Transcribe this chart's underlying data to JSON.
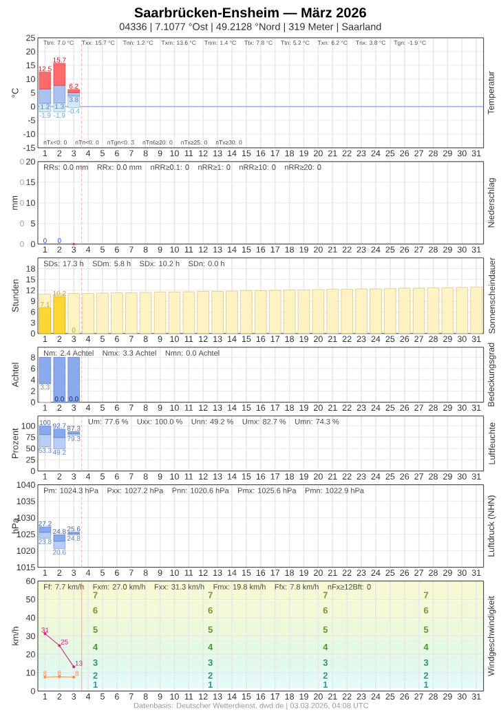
{
  "chart_data": [
    {
      "type": "bar",
      "title": "Saarbrücken-Ensheim — März 2026",
      "subtitle": "04336 | 7.1077 °Ost | 49.2128 °Nord | 319 Meter | Saarland",
      "ylabel": "°C",
      "y2label": "Temperatur",
      "xlim": [
        0.5,
        31.5
      ],
      "xticks": [
        1,
        2,
        3,
        4,
        5,
        6,
        7,
        8,
        9,
        10,
        11,
        12,
        13,
        14,
        15,
        16,
        17,
        18,
        19,
        20,
        21,
        22,
        23,
        24,
        25,
        26,
        27,
        28,
        29,
        30,
        31
      ],
      "ylim": [
        -15,
        25
      ],
      "yticks": [
        -15,
        -10,
        -5,
        0,
        5,
        10,
        15,
        20,
        25
      ],
      "grid": true,
      "series": [
        {
          "x": [
            1,
            2,
            3
          ],
          "base": [
            -1.9,
            -1.9,
            -0.4
          ],
          "values": [
            3.1,
            3.2,
            4.2
          ],
          "color": "#D4EAF8"
        },
        {
          "x": [
            1,
            2,
            3
          ],
          "base": [
            1.2,
            1.3,
            3.8
          ],
          "values": [
            5.2,
            6.4,
            1.3
          ],
          "color": "#A9C2F2"
        },
        {
          "x": [
            1,
            2,
            3
          ],
          "base": [
            6.4,
            7.7,
            5.1
          ],
          "values": [
            6.1,
            8.0,
            1.1
          ],
          "color": "#FF6B6B"
        }
      ],
      "ref_lines": [
        {
          "axis": "y",
          "value": 0,
          "color": "#5B8AE6",
          "line_style": "solid"
        },
        {
          "axis": "x",
          "value": 3.55,
          "color": "#F4A6A6",
          "line_style": "dashed"
        }
      ],
      "annotations": [
        "Ttm: 7.0 °C",
        "Txx: 15.7 °C",
        "Tnn: 1.2 °C",
        "Txm: 13.6 °C",
        "Tnm: 1.4 °C",
        "Ttx: 7.8 °C",
        "Ttn: 5.2 °C",
        "Txn: 6.2 °C",
        "Tnx: 3.8 °C",
        "Tgn: -1.9 °C",
        "nTx<0: 0",
        "nTn<0: 0",
        "nTgn<0: 3",
        "nTn6≥20: 0",
        "nTx≥25: 0",
        "nTx≥30: 0",
        {
          "text": "12.5",
          "x": 1,
          "y": 12.5
        },
        {
          "text": "15.7",
          "x": 2,
          "y": 15.7
        },
        {
          "text": "6.2",
          "x": 3,
          "y": 6.2
        },
        {
          "text": "1.2",
          "x": 1,
          "y": 1.2
        },
        {
          "text": "1.3",
          "x": 2,
          "y": 1.3
        },
        {
          "text": "3.8",
          "x": 3,
          "y": 3.8
        },
        {
          "text": "-1.9",
          "x": 1,
          "y": -1.9
        },
        {
          "text": "-1.9",
          "x": 2,
          "y": -1.9
        },
        {
          "text": "-0.4",
          "x": 3,
          "y": -0.4
        }
      ]
    },
    {
      "type": "bar",
      "ylabel": "mm",
      "y2label": "Niederschlag",
      "xlim": [
        0.5,
        31.5
      ],
      "xticks": [
        1,
        2,
        3,
        4,
        5,
        6,
        7,
        8,
        9,
        10,
        11,
        12,
        13,
        14,
        15,
        16,
        17,
        18,
        19,
        20,
        21,
        22,
        23,
        24,
        25,
        26,
        27,
        28,
        29,
        30,
        31
      ],
      "ylim": [
        0,
        20
      ],
      "yticks": [
        0,
        5,
        10,
        15,
        20
      ],
      "grid": true,
      "series": [
        {
          "x": [
            1,
            2
          ],
          "values": [
            0,
            0
          ],
          "color": "#7B9CF0",
          "value_labels": [
            "0",
            "0"
          ]
        },
        {
          "type": "scatter",
          "x": [
            3
          ],
          "values": [
            0
          ],
          "color": "#FF2020",
          "marker": "circle"
        }
      ],
      "ref_lines": [
        {
          "axis": "x",
          "value": 3.55,
          "color": "#F4A6A6",
          "line_style": "dashed"
        }
      ],
      "annotations": [
        "RRs: 0.0 mm",
        "RRx: 0.0 mm",
        "nRR≥0.1: 0",
        "nRR≥1: 0",
        "nRR≥10: 0",
        "nRR≥20: 0",
        "0",
        "0",
        "0",
        "0",
        "0"
      ]
    },
    {
      "type": "bar",
      "ylabel": "Stunden",
      "y2label": "Sonnenscheindauer",
      "xlim": [
        0.5,
        31.5
      ],
      "xticks": [
        1,
        2,
        3,
        4,
        5,
        6,
        7,
        8,
        9,
        10,
        11,
        12,
        13,
        14,
        15,
        16,
        17,
        18,
        19,
        20,
        21,
        22,
        23,
        24,
        25,
        26,
        27,
        28,
        29,
        30,
        31
      ],
      "ylim": [
        0,
        21
      ],
      "yticks": [
        0,
        3,
        6,
        9,
        12,
        15,
        18
      ],
      "grid": true,
      "series": [
        {
          "x": [
            1,
            2,
            3,
            4,
            5,
            6,
            7,
            8,
            9,
            10,
            11,
            12,
            13,
            14,
            15,
            16,
            17,
            18,
            19,
            20,
            21,
            22,
            23,
            24,
            25,
            26,
            27,
            28,
            29,
            30,
            31
          ],
          "values": [
            10.9,
            11.0,
            11.1,
            11.1,
            11.2,
            11.3,
            11.3,
            11.4,
            11.5,
            11.5,
            11.6,
            11.7,
            11.7,
            11.8,
            11.9,
            11.9,
            12.0,
            12.1,
            12.1,
            12.2,
            12.3,
            12.3,
            12.4,
            12.4,
            12.5,
            12.6,
            12.6,
            12.7,
            12.7,
            12.8,
            12.9
          ],
          "color": "#FFF3C4"
        },
        {
          "x": [
            1,
            2,
            3
          ],
          "values": [
            7.1,
            10.2,
            0
          ],
          "color": "#FFD633",
          "value_labels": [
            "7.1",
            "10.2",
            "0"
          ]
        }
      ],
      "ref_lines": [
        {
          "axis": "x",
          "value": 3.55,
          "color": "#F4A6A6",
          "line_style": "dashed"
        }
      ],
      "annotations": [
        "SDs: 17.3 h",
        "SDm: 5.8 h",
        "SDx: 10.2 h",
        "SDn: 0.0 h"
      ]
    },
    {
      "type": "bar",
      "ylabel": "Achtel",
      "y2label": "Bedeckungsgrad",
      "xlim": [
        0.5,
        31.5
      ],
      "xticks": [
        1,
        2,
        3,
        4,
        5,
        6,
        7,
        8,
        9,
        10,
        11,
        12,
        13,
        14,
        15,
        16,
        17,
        18,
        19,
        20,
        21,
        22,
        23,
        24,
        25,
        26,
        27,
        28,
        29,
        30,
        31
      ],
      "ylim": [
        0,
        9.8
      ],
      "yticks": [
        0,
        2,
        4,
        6,
        8
      ],
      "grid": true,
      "stacked": true,
      "series": [
        {
          "x": [
            1,
            2,
            3
          ],
          "values": [
            3.3,
            0.0,
            0.0
          ],
          "color": "#FFFFFF",
          "value_labels": [
            "3.3",
            null,
            null
          ]
        },
        {
          "x": [
            1,
            2,
            3
          ],
          "values": [
            4.7,
            8,
            8
          ],
          "color": "#8AAAF0"
        }
      ],
      "ref_lines": [
        {
          "axis": "x",
          "value": 3.55,
          "color": "#F4A6A6",
          "line_style": "dashed"
        }
      ],
      "annotations": [
        "Nm: 2.4 Achtel",
        "Nmx: 3.3 Achtel",
        "Nmn: 0.0 Achtel",
        {
          "text": "0.0",
          "x": 2,
          "y": 0
        },
        {
          "text": "0.0",
          "x": 3,
          "y": 0
        }
      ]
    },
    {
      "type": "bar",
      "ylabel": "Prozent",
      "y2label": "Luftfeuchte",
      "xlim": [
        0.5,
        31.5
      ],
      "xticks": [
        1,
        2,
        3,
        4,
        5,
        6,
        7,
        8,
        9,
        10,
        11,
        12,
        13,
        14,
        15,
        16,
        17,
        18,
        19,
        20,
        21,
        22,
        23,
        24,
        25,
        26,
        27,
        28,
        29,
        30,
        31
      ],
      "ylim": [
        0,
        122
      ],
      "yticks": [
        0,
        25,
        50,
        75,
        100
      ],
      "grid": true,
      "series": [
        {
          "x": [
            1,
            2,
            3
          ],
          "base": [
            53.3,
            49.2,
            79.3
          ],
          "values": [
            27.6,
            25.1,
            3.4
          ],
          "color": "#B8CDF5"
        },
        {
          "x": [
            1,
            2,
            3
          ],
          "base": [
            80.9,
            74.3,
            82.7
          ],
          "values": [
            19.1,
            18.4,
            4.6
          ],
          "color": "#88A9EF"
        }
      ],
      "ref_lines": [
        {
          "axis": "x",
          "value": 3.55,
          "color": "#F4A6A6",
          "line_style": "dashed"
        }
      ],
      "annotations": [
        "Um: 77.6 %",
        "Uxx: 100.0 %",
        "Unn: 49.2 %",
        "Umx: 82.7 %",
        "Umn: 74.3 %",
        {
          "text": "100",
          "x": 1,
          "y": 100
        },
        {
          "text": "92.7",
          "x": 2,
          "y": 92.7
        },
        {
          "text": "87.3",
          "x": 3,
          "y": 87.3
        },
        {
          "text": "53.3",
          "x": 1,
          "y": 53.3
        },
        {
          "text": "49.2",
          "x": 2,
          "y": 49.2
        },
        {
          "text": "79.3",
          "x": 3,
          "y": 79.3
        }
      ]
    },
    {
      "type": "bar",
      "ylabel": "hPa",
      "y2label": "Luftdruck (NHN)",
      "xlim": [
        0.5,
        31.5
      ],
      "xticks": [
        1,
        2,
        3,
        4,
        5,
        6,
        7,
        8,
        9,
        10,
        11,
        12,
        13,
        14,
        15,
        16,
        17,
        18,
        19,
        20,
        21,
        22,
        23,
        24,
        25,
        26,
        27,
        28,
        29,
        30,
        31
      ],
      "ylim": [
        1015,
        1040
      ],
      "yticks": [
        1015,
        1020,
        1025,
        1030,
        1035,
        1040
      ],
      "grid": true,
      "series": [
        {
          "x": [
            1,
            2,
            3
          ],
          "base": [
            1023.8,
            1020.6,
            1024.8
          ],
          "values": [
            1.8,
            2.3,
            0.4
          ],
          "color": "#B8CDF5"
        },
        {
          "x": [
            1,
            2,
            3
          ],
          "base": [
            1025.6,
            1022.9,
            1025.2
          ],
          "values": [
            1.6,
            1.9,
            0.4
          ],
          "color": "#88A9EF"
        }
      ],
      "ref_lines": [
        {
          "axis": "x",
          "value": 3.55,
          "color": "#F4A6A6",
          "line_style": "dashed"
        }
      ],
      "annotations": [
        "Pm: 1024.3 hPa",
        "Pxx: 1027.2 hPa",
        "Pnn: 1020.6 hPa",
        "Pmx: 1025.6 hPa",
        "Pmn: 1022.9 hPa",
        {
          "text": "27.2",
          "x": 1,
          "y": 1027.2
        },
        {
          "text": "24.8",
          "x": 2,
          "y": 1024.8
        },
        {
          "text": "25.6",
          "x": 3,
          "y": 1025.6
        },
        {
          "text": "23.8",
          "x": 1,
          "y": 1023.8
        },
        {
          "text": "20.6",
          "x": 2,
          "y": 1020.6
        },
        {
          "text": "24.8",
          "x": 3,
          "y": 1024.8
        }
      ]
    },
    {
      "type": "line",
      "ylabel": "km/h",
      "y2label": "Windgeschwindigkeit",
      "xlim": [
        0.5,
        31.5
      ],
      "xticks": [
        1,
        2,
        3,
        4,
        5,
        6,
        7,
        8,
        9,
        10,
        11,
        12,
        13,
        14,
        15,
        16,
        17,
        18,
        19,
        20,
        21,
        22,
        23,
        24,
        25,
        26,
        27,
        28,
        29,
        30,
        31
      ],
      "ylim": [
        0,
        60
      ],
      "yticks": [
        0,
        10,
        20,
        30,
        40,
        50,
        60
      ],
      "grid": true,
      "marker": "circle",
      "series": [
        {
          "x": [
            1,
            2,
            3
          ],
          "values": [
            31.3,
            24.8,
            13.2
          ],
          "color": "#D2237F",
          "value_labels": [
            "31",
            "25",
            "13"
          ]
        },
        {
          "x": [
            1,
            2,
            3
          ],
          "values": [
            7.6,
            7.8,
            7.6
          ],
          "color": "#FF8A45",
          "value_labels": [
            "8",
            "8",
            "8"
          ]
        }
      ],
      "bands": [
        {
          "axis": "y",
          "from": 1.5,
          "to": 5.5,
          "label": "1",
          "color": "#E6FBFA"
        },
        {
          "axis": "y",
          "from": 5.5,
          "to": 11.5,
          "label": "2",
          "color": "#E2FAF3"
        },
        {
          "axis": "y",
          "from": 11.5,
          "to": 19.5,
          "label": "3",
          "color": "#E1F8EA"
        },
        {
          "axis": "y",
          "from": 19.5,
          "to": 28.5,
          "label": "4",
          "color": "#E5F8E1"
        },
        {
          "axis": "y",
          "from": 28.5,
          "to": 38.5,
          "label": "5",
          "color": "#EBF8DA"
        },
        {
          "axis": "y",
          "from": 38.5,
          "to": 49.5,
          "label": "6",
          "color": "#F1F9D7"
        },
        {
          "axis": "y",
          "from": 49.5,
          "to": 60,
          "label": "7",
          "color": "#F6F9D4"
        }
      ],
      "ref_lines": [
        {
          "axis": "x",
          "value": 3.55,
          "color": "#E8A8A0",
          "line_style": "solid"
        }
      ],
      "annotations": [
        "Ff: 7.7 km/h",
        "Fxm: 27.0 km/h",
        "Fxx: 31.3 km/h",
        "Fmx: 19.8 km/h",
        "Ffx: 7.8 km/h",
        "nFx≥12Bft: 0",
        "Datenbasis: Deutscher Wetterdienst, dwd.de | 03.03.2026, 04:08 UTC"
      ]
    }
  ]
}
